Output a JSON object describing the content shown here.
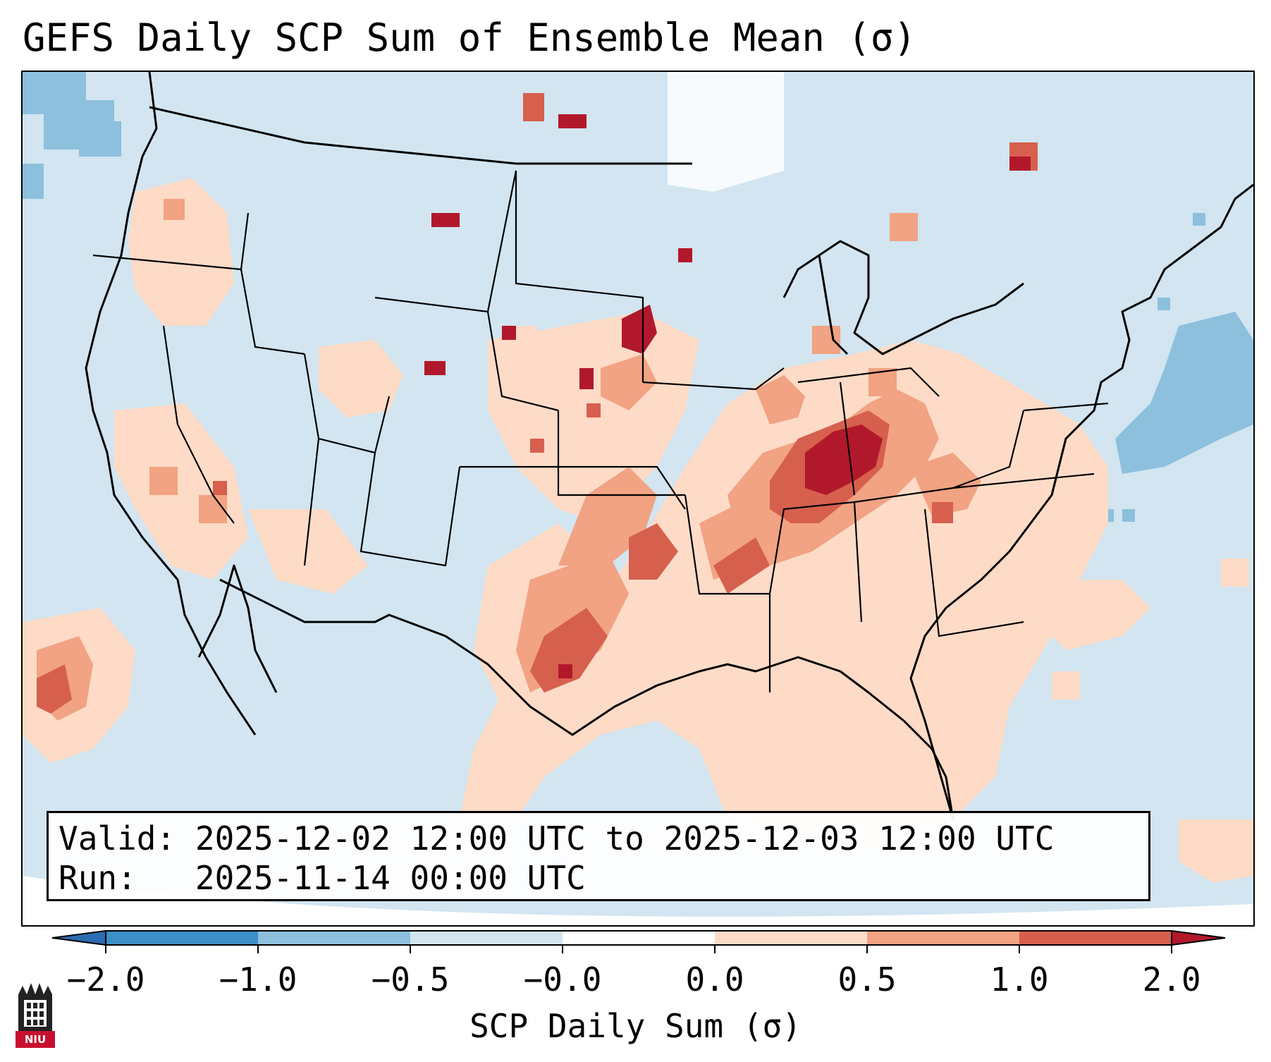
{
  "title": "GEFS Daily SCP Sum of Ensemble Mean (σ)",
  "info": {
    "valid_label": "Valid:",
    "valid_value": "2025-12-02 12:00 UTC to 2025-12-03 12:00 UTC",
    "run_label": "Run:",
    "run_value": "2025-11-14 00:00 UTC"
  },
  "colorbar": {
    "label": "SCP Daily Sum (σ)",
    "ticks": [
      "−2.0",
      "−1.0",
      "−0.5",
      "−0.0",
      "0.0",
      "0.5",
      "1.0",
      "2.0"
    ],
    "colors": {
      "below_min": "#2b6cb2",
      "bin_m2_m1": "#3d8fc8",
      "bin_m1_m05": "#8cc0dd",
      "bin_m05_m0": "#d2e5f0",
      "bin_m0_0": "#ffffff",
      "bin_0_05": "#fddbc7",
      "bin_05_1": "#f1a383",
      "bin_1_2": "#d6604d",
      "above_max": "#b2182b"
    }
  },
  "map": {
    "region": "Continental United States",
    "background_color": "#d2e5f0",
    "outline_color": "#000000"
  },
  "logo": {
    "icon": "niu-building-icon",
    "text": "NIU"
  }
}
